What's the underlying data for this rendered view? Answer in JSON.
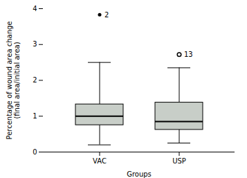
{
  "chart_data": {
    "type": "box",
    "xlabel": "Groups",
    "ylabel": "Percentage of wound area change\n(final area/initial area)",
    "categories": [
      "VAC",
      "USP"
    ],
    "boxes": [
      {
        "median": 1.0,
        "q1": 0.75,
        "q3": 1.33,
        "whisker_low": 0.2,
        "whisker_high": 2.5,
        "outliers": [
          3.83
        ],
        "outlier_labels": [
          "2"
        ],
        "marker": "point"
      },
      {
        "median": 0.85,
        "q1": 0.62,
        "q3": 1.38,
        "whisker_low": 0.25,
        "whisker_high": 2.35,
        "outliers": [
          2.72
        ],
        "outlier_labels": [
          "13"
        ],
        "marker": "circle"
      }
    ],
    "color": "#c8cec8",
    "ylim": [
      0,
      4
    ],
    "yticks": [
      0,
      1,
      2,
      3,
      4
    ],
    "grid": false
  }
}
